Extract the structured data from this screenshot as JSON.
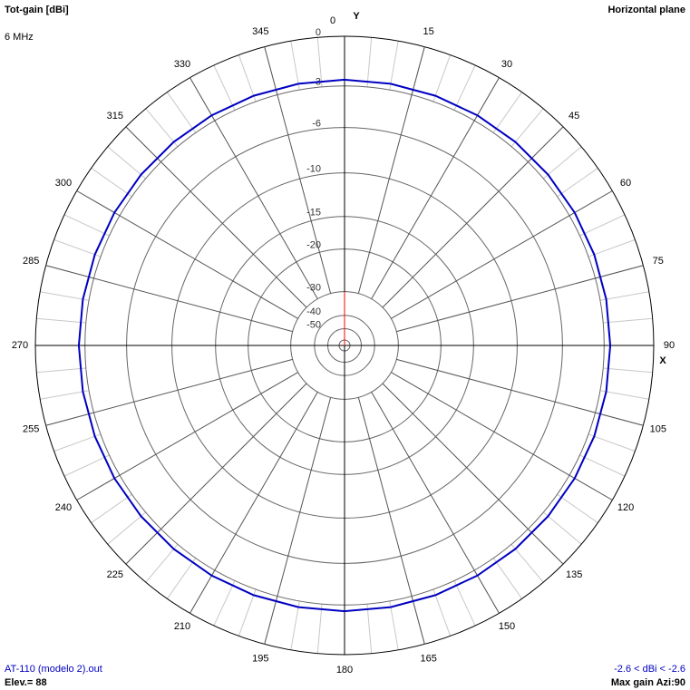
{
  "chart_data": {
    "type": "polar",
    "title": "Tot-gain [dBi]",
    "subtitle": "6 MHz",
    "plane_label": "Horizontal plane",
    "y_axis_label": "Y",
    "x_axis_label": "X",
    "angle_ticks": [
      0,
      15,
      30,
      45,
      60,
      75,
      90,
      105,
      120,
      135,
      150,
      165,
      180,
      195,
      210,
      225,
      240,
      255,
      270,
      285,
      300,
      315,
      330,
      345
    ],
    "rlim": [
      -50,
      0
    ],
    "rticks": [
      0,
      -3,
      -6,
      -10,
      -15,
      -20,
      -30,
      -40,
      -50
    ],
    "rscale": "arrl",
    "series": [
      {
        "name": "AT-110 (modelo 2).out",
        "color": "#0000c0",
        "theta": [
          0,
          10,
          20,
          30,
          40,
          50,
          60,
          70,
          80,
          90,
          100,
          110,
          120,
          130,
          140,
          150,
          160,
          170,
          180,
          190,
          200,
          210,
          220,
          230,
          240,
          250,
          260,
          270,
          280,
          290,
          300,
          310,
          320,
          330,
          340,
          350
        ],
        "values": [
          -2.6,
          -2.6,
          -2.6,
          -2.6,
          -2.6,
          -2.6,
          -2.6,
          -2.6,
          -2.6,
          -2.6,
          -2.6,
          -2.6,
          -2.6,
          -2.6,
          -2.6,
          -2.6,
          -2.6,
          -2.6,
          -2.6,
          -2.6,
          -2.6,
          -2.6,
          -2.6,
          -2.6,
          -2.6,
          -2.6,
          -2.6,
          -2.6,
          -2.6,
          -2.6,
          -2.6,
          -2.6,
          -2.6,
          -2.6,
          -2.6,
          -2.6
        ]
      }
    ],
    "elevation_label": "Elev.= 88",
    "gain_range_label": "-2.6 < dBi < -2.6",
    "max_gain_label": "Max gain Azi:90"
  }
}
